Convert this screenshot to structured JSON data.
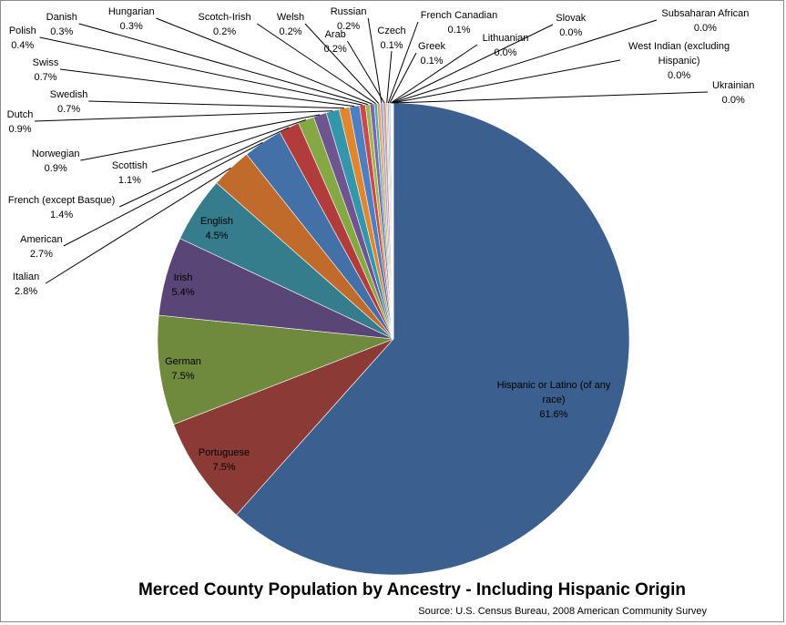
{
  "chart_data": {
    "type": "pie",
    "title": "Merced County Population by Ancestry - Including Hispanic Origin",
    "subtitle": "Source: U.S. Census Bureau, 2008 American Community Survey",
    "start_angle_deg": 0,
    "direction": "clockwise",
    "slices": [
      {
        "label": "Hispanic or Latino (of any race)",
        "value": 61.6,
        "display": "61.6%",
        "color": "#3b5f8e"
      },
      {
        "label": "Portuguese",
        "value": 7.5,
        "display": "7.5%",
        "color": "#8c3a36"
      },
      {
        "label": "German",
        "value": 7.5,
        "display": "7.5%",
        "color": "#6f8a3c"
      },
      {
        "label": "Irish",
        "value": 5.4,
        "display": "5.4%",
        "color": "#5a4577"
      },
      {
        "label": "English",
        "value": 4.5,
        "display": "4.5%",
        "color": "#357d8c"
      },
      {
        "label": "Italian",
        "value": 2.8,
        "display": "2.8%",
        "color": "#c06a2b"
      },
      {
        "label": "American",
        "value": 2.7,
        "display": "2.7%",
        "color": "#4470a8"
      },
      {
        "label": "French (except Basque)",
        "value": 1.4,
        "display": "1.4%",
        "color": "#b23c3c"
      },
      {
        "label": "Scottish",
        "value": 1.1,
        "display": "1.1%",
        "color": "#85a845"
      },
      {
        "label": "Norwegian",
        "value": 0.9,
        "display": "0.9%",
        "color": "#6e5590"
      },
      {
        "label": "Dutch",
        "value": 0.9,
        "display": "0.9%",
        "color": "#3496ab"
      },
      {
        "label": "Swedish",
        "value": 0.7,
        "display": "0.7%",
        "color": "#e0862f"
      },
      {
        "label": "Swiss",
        "value": 0.7,
        "display": "0.7%",
        "color": "#4f7fc0"
      },
      {
        "label": "Polish",
        "value": 0.4,
        "display": "0.4%",
        "color": "#c94a48"
      },
      {
        "label": "Danish",
        "value": 0.3,
        "display": "0.3%",
        "color": "#98b954"
      },
      {
        "label": "Hungarian",
        "value": 0.3,
        "display": "0.3%",
        "color": "#8066a2"
      },
      {
        "label": "Scotch-Irish",
        "value": 0.2,
        "display": "0.2%",
        "color": "#4aabc6"
      },
      {
        "label": "Welsh",
        "value": 0.2,
        "display": "0.2%",
        "color": "#f59a45"
      },
      {
        "label": "Russian",
        "value": 0.2,
        "display": "0.2%",
        "color": "#94aed6"
      },
      {
        "label": "Arab",
        "value": 0.2,
        "display": "0.2%",
        "color": "#d89a98"
      },
      {
        "label": "Czech",
        "value": 0.1,
        "display": "0.1%",
        "color": "#bcd39a"
      },
      {
        "label": "French Canadian",
        "value": 0.1,
        "display": "0.1%",
        "color": "#b3a6cb"
      },
      {
        "label": "Greek",
        "value": 0.1,
        "display": "0.1%",
        "color": "#93cdde"
      },
      {
        "label": "Lithuanian",
        "value": 0.05,
        "display": "0.0%",
        "color": "#f8c598"
      },
      {
        "label": "Slovak",
        "value": 0.04,
        "display": "0.0%",
        "color": "#5b7fb0"
      },
      {
        "label": "Subsaharan African",
        "value": 0.04,
        "display": "0.0%",
        "color": "#a04c49"
      },
      {
        "label": "West Indian (excluding Hispanic)",
        "value": 0.04,
        "display": "0.0%",
        "color": "#7f9a4d"
      },
      {
        "label": "Ukrainian",
        "value": 0.03,
        "display": "0.0%",
        "color": "#6a5a8a"
      }
    ]
  }
}
